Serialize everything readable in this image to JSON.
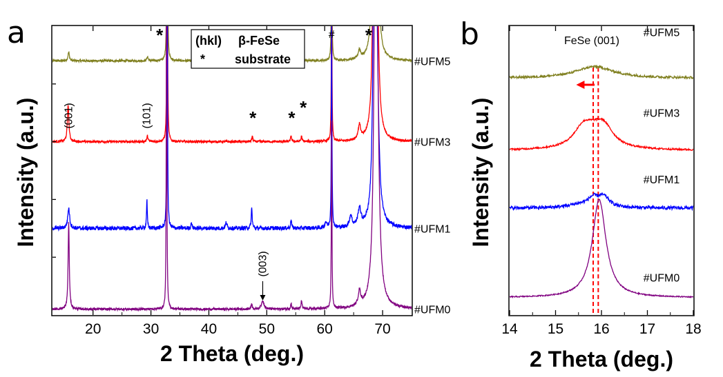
{
  "chart_data": [
    {
      "panel": "a",
      "type": "line",
      "title": "",
      "xlabel": "2 Theta (deg.)",
      "ylabel": "Intensity (a.u.)",
      "xlim": [
        13,
        75
      ],
      "xticks": [
        20,
        30,
        40,
        50,
        60,
        70
      ],
      "legend": {
        "title_left": "(hkl)",
        "title_right": "β-FeSe",
        "symbol": "*",
        "label": "substrate",
        "placement": "top"
      },
      "series": [
        {
          "name": "#UFM5",
          "color": "#808020",
          "baseline": 0.88,
          "noise": 0.004,
          "peaks": [
            [
              15.8,
              0.15,
              0.03
            ],
            [
              29.4,
              0.12,
              0.015
            ],
            [
              32.8,
              0.05,
              1.6
            ],
            [
              47.5,
              0.1,
              0.02
            ],
            [
              54.2,
              0.1,
              0.02
            ],
            [
              56.0,
              0.1,
              0.03
            ],
            [
              61.2,
              0.06,
              0.57
            ],
            [
              66.0,
              0.25,
              0.03
            ],
            [
              68.5,
              0.2,
              1.2
            ],
            [
              69.0,
              0.3,
              0.5
            ]
          ]
        },
        {
          "name": "#UFM3",
          "color": "#ff0000",
          "baseline": 0.6,
          "noise": 0.004,
          "peaks": [
            [
              15.7,
              0.15,
              0.13
            ],
            [
              29.4,
              0.12,
              0.02
            ],
            [
              32.8,
              0.05,
              1.6
            ],
            [
              47.5,
              0.1,
              0.02
            ],
            [
              54.2,
              0.1,
              0.02
            ],
            [
              56.0,
              0.1,
              0.02
            ],
            [
              61.2,
              0.06,
              0.6
            ],
            [
              66.0,
              0.25,
              0.05
            ],
            [
              68.6,
              0.2,
              1.6
            ],
            [
              69.0,
              0.3,
              0.5
            ]
          ]
        },
        {
          "name": "#UFM1",
          "color": "#0000ff",
          "baseline": 0.3,
          "noise": 0.007,
          "peaks": [
            [
              15.8,
              0.2,
              0.07
            ],
            [
              29.3,
              0.08,
              0.1
            ],
            [
              32.8,
              0.05,
              1.6
            ],
            [
              37.0,
              0.1,
              0.02
            ],
            [
              43.0,
              0.15,
              0.02
            ],
            [
              47.4,
              0.1,
              0.07
            ],
            [
              54.2,
              0.1,
              0.03
            ],
            [
              60.2,
              0.2,
              0.02
            ],
            [
              61.2,
              0.06,
              0.75
            ],
            [
              64.5,
              0.25,
              0.04
            ],
            [
              66.0,
              0.3,
              0.06
            ],
            [
              68.6,
              0.2,
              1.6
            ],
            [
              69.0,
              0.35,
              0.5
            ]
          ]
        },
        {
          "name": "#UFM0",
          "color": "#800080",
          "baseline": 0.02,
          "noise": 0.004,
          "peaks": [
            [
              15.8,
              0.12,
              0.3
            ],
            [
              32.7,
              0.05,
              1.6
            ],
            [
              47.4,
              0.1,
              0.02
            ],
            [
              49.3,
              0.25,
              0.03
            ],
            [
              54.2,
              0.1,
              0.02
            ],
            [
              56.0,
              0.1,
              0.03
            ],
            [
              61.2,
              0.06,
              0.65
            ],
            [
              66.0,
              0.25,
              0.05
            ],
            [
              68.8,
              0.25,
              1.6
            ],
            [
              69.0,
              0.4,
              0.5
            ]
          ]
        }
      ],
      "annotations": [
        {
          "text": "(001)",
          "x": 15.8,
          "kind": "label"
        },
        {
          "text": "(101)",
          "x": 29.3,
          "kind": "label"
        },
        {
          "text": "(003)",
          "x": 49.3,
          "kind": "label-arrow"
        },
        {
          "text": "*",
          "x": 31.5,
          "kind": "star"
        },
        {
          "text": "*",
          "x": 47.6,
          "kind": "star"
        },
        {
          "text": "*",
          "x": 54.3,
          "kind": "star"
        },
        {
          "text": "*",
          "x": 56.3,
          "kind": "star"
        },
        {
          "text": "*",
          "x": 67.6,
          "kind": "star"
        },
        {
          "text": "#",
          "x": 61.2,
          "kind": "hash"
        }
      ]
    },
    {
      "panel": "b",
      "type": "line",
      "title": "FeSe (001)",
      "xlabel": "2 Theta (deg.)",
      "ylabel": "Intensity (a.u.)",
      "xlim": [
        14,
        18
      ],
      "xticks": [
        14,
        15,
        16,
        17,
        18
      ],
      "reference_lines": [
        15.82,
        15.93
      ],
      "shift_arrow": {
        "from": 15.85,
        "to": 15.45,
        "color": "#ff0000"
      },
      "series": [
        {
          "name": "#UFM5",
          "color": "#808020",
          "baseline": 0.82,
          "noise": 0.004,
          "peaks": [
            [
              15.85,
              0.5,
              0.04
            ]
          ]
        },
        {
          "name": "#UFM3",
          "color": "#ff0000",
          "baseline": 0.57,
          "noise": 0.003,
          "peaks": [
            [
              15.6,
              0.25,
              0.06
            ],
            [
              16.05,
              0.25,
              0.06
            ],
            [
              15.85,
              0.35,
              0.04
            ]
          ]
        },
        {
          "name": "#UFM1",
          "color": "#0000ff",
          "baseline": 0.37,
          "noise": 0.006,
          "peaks": [
            [
              15.82,
              0.15,
              0.03
            ],
            [
              16.05,
              0.15,
              0.035
            ],
            [
              15.5,
              0.3,
              0.01
            ]
          ]
        },
        {
          "name": "#UFM0",
          "color": "#800080",
          "baseline": 0.06,
          "noise": 0.002,
          "peaks": [
            [
              15.95,
              0.18,
              0.34
            ]
          ]
        }
      ]
    }
  ],
  "panels": {
    "a": "a",
    "b": "b"
  }
}
